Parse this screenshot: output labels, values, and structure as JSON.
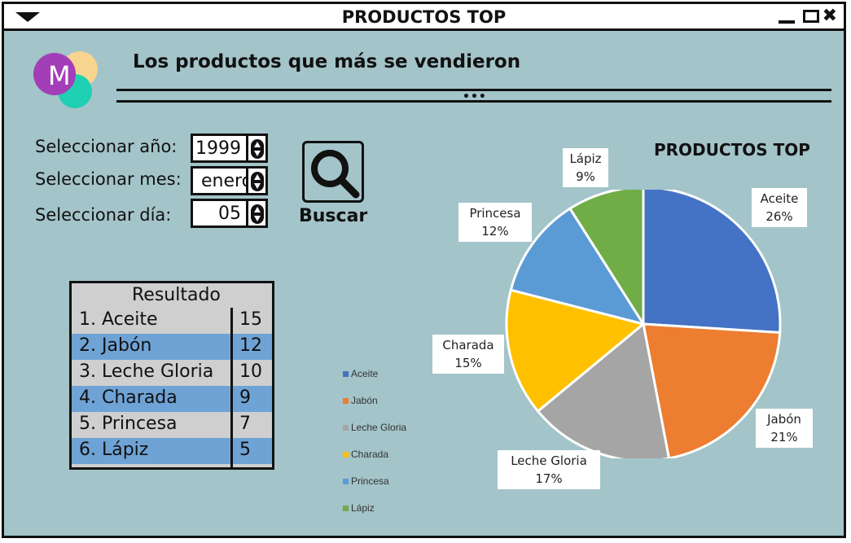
{
  "window": {
    "title": "PRODUCTOS TOP",
    "controls": {
      "minimize": "minimize-icon",
      "maximize": "maximize-icon",
      "close": "✖"
    }
  },
  "header": {
    "logo_letter": "M",
    "headline": "Los productos que más se vendieron",
    "dots": "•••"
  },
  "filters": {
    "year_label": "Seleccionar año:",
    "year_value": "1999",
    "month_label": "Seleccionar mes:",
    "month_value": "enero",
    "day_label": "Seleccionar día:",
    "day_value": "05",
    "search_label": "Buscar"
  },
  "results": {
    "header": "Resultado",
    "rows": [
      {
        "name": "1. Aceite",
        "count": "15"
      },
      {
        "name": "2. Jabón",
        "count": "12"
      },
      {
        "name": "3. Leche  Gloria",
        "count": "10"
      },
      {
        "name": "4. Charada",
        "count": "9"
      },
      {
        "name": "5. Princesa",
        "count": "7"
      },
      {
        "name": "6. Lápiz",
        "count": "5"
      }
    ]
  },
  "chart_data": {
    "type": "pie",
    "title": "PRODUCTOS TOP",
    "legend_position": "left",
    "slices": [
      {
        "label": "Aceite",
        "percent": "26%",
        "value": 26,
        "color": "#4472c4"
      },
      {
        "label": "Jabón",
        "percent": "21%",
        "value": 21,
        "color": "#ed7d31"
      },
      {
        "label": "Leche Gloria",
        "percent": "17%",
        "value": 17,
        "color": "#a5a5a5"
      },
      {
        "label": "Charada",
        "percent": "15%",
        "value": 15,
        "color": "#ffc000"
      },
      {
        "label": "Princesa",
        "percent": "12%",
        "value": 12,
        "color": "#5b9bd5"
      },
      {
        "label": "Lápiz",
        "percent": "9%",
        "value": 9,
        "color": "#70ad47"
      }
    ]
  }
}
